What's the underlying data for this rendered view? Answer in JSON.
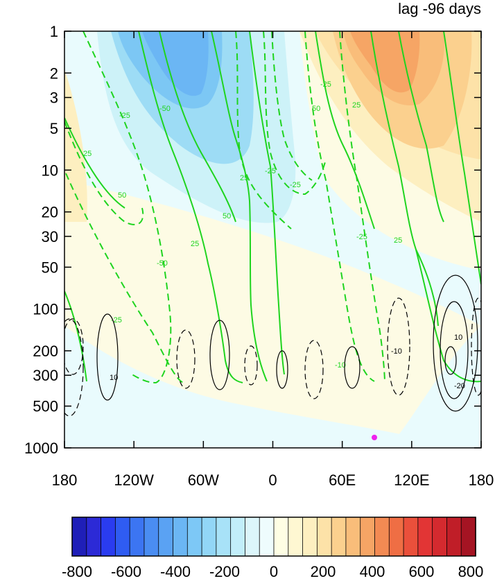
{
  "chart_data": {
    "type": "heatmap",
    "title": "lag -96 days",
    "xlabel": "",
    "ylabel": "",
    "x_ticks": [
      "180",
      "120W",
      "60W",
      "0",
      "60E",
      "120E",
      "180"
    ],
    "y_ticks": [
      "1",
      "2",
      "3",
      "5",
      "10",
      "20",
      "30",
      "50",
      "100",
      "200",
      "300",
      "500",
      "1000"
    ],
    "y_scale": "log",
    "xlim": [
      "180",
      "180"
    ],
    "ylim": [
      1000,
      1
    ],
    "colorbar": {
      "labels": [
        "-800",
        "-600",
        "-400",
        "-200",
        "0",
        "200",
        "400",
        "600",
        "800"
      ],
      "range": [
        -800,
        800
      ],
      "step": 50,
      "colors": [
        "#1f1fb8",
        "#2c2ad6",
        "#2a3cf0",
        "#2f5cf2",
        "#3c75f2",
        "#4a8df2",
        "#5aa2f3",
        "#6bb6f4",
        "#7dc8f6",
        "#92d6f7",
        "#a8e2f8",
        "#c2eefa",
        "#dcf6fb",
        "#eefcfd",
        "#fefee4",
        "#fef7d2",
        "#fdefc0",
        "#fde2a8",
        "#fbd08e",
        "#f9bd7a",
        "#f6a565",
        "#f38a53",
        "#ef6e44",
        "#ea503b",
        "#e23535",
        "#d42a2f",
        "#c01e28",
        "#a51423"
      ]
    },
    "contour_labels": [
      "25",
      "-25",
      "50",
      "-50",
      "-25",
      "-50",
      "25",
      "50",
      "-25",
      "25",
      "-25",
      "50",
      "-25",
      "-25",
      "25",
      "25",
      "-10",
      "10",
      "-10",
      "10",
      "-20"
    ],
    "marker": {
      "color": "#ee22ee"
    }
  }
}
